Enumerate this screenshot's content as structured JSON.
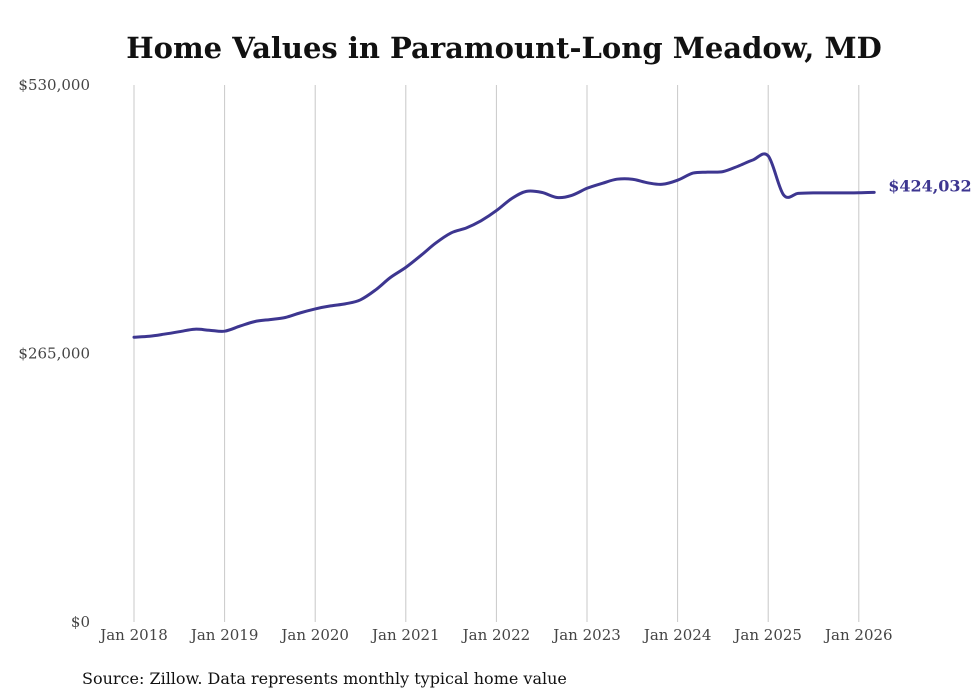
{
  "chart_data": {
    "type": "line",
    "title": "Home Values in Paramount-Long Meadow, MD",
    "xlabel": "",
    "ylabel": "",
    "ylim": [
      0,
      530000
    ],
    "y_tick_labels": [
      "$0",
      "$265,000",
      "$530,000"
    ],
    "y_tick_values": [
      0,
      265000,
      530000
    ],
    "x_tick_labels": [
      "Jan 2018",
      "Jan 2019",
      "Jan 2020",
      "Jan 2021",
      "Jan 2022",
      "Jan 2023",
      "Jan 2024",
      "Jan 2025",
      "Jan 2026"
    ],
    "x_tick_values": [
      2018,
      2019,
      2020,
      2021,
      2022,
      2023,
      2024,
      2025,
      2026
    ],
    "xlim": [
      2018,
      2026.17
    ],
    "grid": "vertical",
    "series": [
      {
        "name": "Typical home value",
        "color": "#3d3690",
        "x": [
          2018.0,
          2018.17,
          2018.33,
          2018.5,
          2018.67,
          2018.83,
          2019.0,
          2019.17,
          2019.33,
          2019.5,
          2019.67,
          2019.83,
          2020.0,
          2020.17,
          2020.33,
          2020.5,
          2020.67,
          2020.83,
          2021.0,
          2021.17,
          2021.33,
          2021.5,
          2021.67,
          2021.83,
          2022.0,
          2022.17,
          2022.33,
          2022.5,
          2022.67,
          2022.83,
          2023.0,
          2023.17,
          2023.33,
          2023.5,
          2023.67,
          2023.83,
          2024.0,
          2024.17,
          2024.33,
          2024.5,
          2024.67,
          2024.83,
          2025.0,
          2025.17,
          2025.33,
          2025.5,
          2025.67,
          2025.83,
          2026.0,
          2026.17
        ],
        "values": [
          281000,
          282000,
          284000,
          286500,
          289000,
          288000,
          287000,
          292000,
          296500,
          298500,
          300500,
          305000,
          309000,
          312000,
          314000,
          318000,
          328000,
          340000,
          350000,
          362000,
          374000,
          384000,
          389000,
          396000,
          406000,
          418000,
          425000,
          424000,
          419000,
          421000,
          428000,
          433000,
          437000,
          437000,
          433500,
          432000,
          436000,
          443000,
          444000,
          444500,
          450000,
          456000,
          460000,
          421500,
          423000,
          423500,
          423500,
          423500,
          423700,
          424032
        ]
      }
    ],
    "end_label": "$424,032",
    "source_note": "Source: Zillow. Data represents monthly typical home value"
  }
}
